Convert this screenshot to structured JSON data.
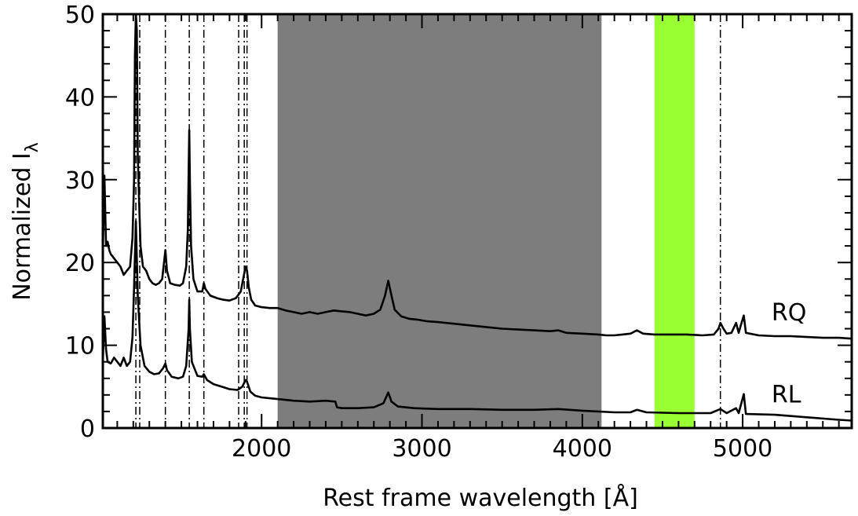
{
  "chart_data": {
    "type": "line",
    "title": "",
    "xlabel": "Rest frame wavelength [Å]",
    "ylabel": "Normalized I",
    "ylabel_subscript": "λ",
    "xlim": [
      1010,
      5680
    ],
    "ylim": [
      0,
      50
    ],
    "x_ticks": [
      {
        "value": 2000,
        "label": "2000"
      },
      {
        "value": 3000,
        "label": "3000"
      },
      {
        "value": 4000,
        "label": "4000"
      },
      {
        "value": 5000,
        "label": "5000"
      }
    ],
    "y_ticks": [
      {
        "value": 0,
        "label": "0"
      },
      {
        "value": 10,
        "label": "10"
      },
      {
        "value": 20,
        "label": "20"
      },
      {
        "value": 30,
        "label": "30"
      },
      {
        "value": 40,
        "label": "40"
      },
      {
        "value": 50,
        "label": "50"
      }
    ],
    "shaded_regions": [
      {
        "x0": 2100,
        "x1": 4120,
        "color": "#7d7d7d"
      },
      {
        "x0": 4450,
        "x1": 4700,
        "color": "#99ff33"
      }
    ],
    "line_markers": [
      1216,
      1240,
      1400,
      1549,
      1640,
      1857,
      1892,
      1909,
      4861
    ],
    "series": [
      {
        "name": "RQ",
        "color": "#000000",
        "points": [
          [
            1010,
            21
          ],
          [
            1020,
            30.5
          ],
          [
            1030,
            22
          ],
          [
            1040,
            22.5
          ],
          [
            1050,
            21.5
          ],
          [
            1060,
            21
          ],
          [
            1080,
            20.5
          ],
          [
            1100,
            20
          ],
          [
            1120,
            19.5
          ],
          [
            1140,
            18.5
          ],
          [
            1160,
            19
          ],
          [
            1180,
            19.5
          ],
          [
            1195,
            23
          ],
          [
            1205,
            30
          ],
          [
            1210,
            45
          ],
          [
            1216,
            50
          ],
          [
            1222,
            48
          ],
          [
            1228,
            33
          ],
          [
            1235,
            28
          ],
          [
            1245,
            22
          ],
          [
            1260,
            19.5
          ],
          [
            1280,
            19
          ],
          [
            1300,
            18
          ],
          [
            1320,
            17.5
          ],
          [
            1340,
            17.3
          ],
          [
            1360,
            17.5
          ],
          [
            1380,
            18
          ],
          [
            1400,
            21.5
          ],
          [
            1410,
            19
          ],
          [
            1430,
            17.5
          ],
          [
            1460,
            17.3
          ],
          [
            1490,
            17.2
          ],
          [
            1510,
            17.5
          ],
          [
            1530,
            19.5
          ],
          [
            1540,
            24
          ],
          [
            1545,
            31
          ],
          [
            1549,
            36
          ],
          [
            1553,
            30
          ],
          [
            1560,
            22
          ],
          [
            1575,
            18
          ],
          [
            1600,
            16.5
          ],
          [
            1630,
            16.5
          ],
          [
            1640,
            17.5
          ],
          [
            1650,
            16.8
          ],
          [
            1680,
            16
          ],
          [
            1720,
            15.7
          ],
          [
            1760,
            15.5
          ],
          [
            1800,
            15.4
          ],
          [
            1840,
            15.7
          ],
          [
            1870,
            16.5
          ],
          [
            1900,
            19.5
          ],
          [
            1909,
            19
          ],
          [
            1920,
            17
          ],
          [
            1935,
            15.5
          ],
          [
            1960,
            14.8
          ],
          [
            2000,
            14.6
          ],
          [
            2050,
            14.5
          ],
          [
            2100,
            14.5
          ],
          [
            2150,
            14.2
          ],
          [
            2200,
            14
          ],
          [
            2250,
            13.8
          ],
          [
            2300,
            14
          ],
          [
            2350,
            13.8
          ],
          [
            2400,
            14
          ],
          [
            2450,
            14.2
          ],
          [
            2500,
            14.1
          ],
          [
            2550,
            14
          ],
          [
            2600,
            13.8
          ],
          [
            2650,
            13.6
          ],
          [
            2700,
            13.8
          ],
          [
            2740,
            14.3
          ],
          [
            2770,
            16
          ],
          [
            2790,
            17.8
          ],
          [
            2810,
            16
          ],
          [
            2830,
            14.3
          ],
          [
            2870,
            13.5
          ],
          [
            2920,
            13.2
          ],
          [
            2970,
            13.1
          ],
          [
            3030,
            12.9
          ],
          [
            3100,
            12.8
          ],
          [
            3200,
            12.6
          ],
          [
            3300,
            12.4
          ],
          [
            3400,
            12.2
          ],
          [
            3500,
            12
          ],
          [
            3600,
            11.9
          ],
          [
            3700,
            11.8
          ],
          [
            3800,
            11.7
          ],
          [
            3850,
            11.8
          ],
          [
            3900,
            11.5
          ],
          [
            4000,
            11.4
          ],
          [
            4100,
            11.3
          ],
          [
            4150,
            11.2
          ],
          [
            4200,
            11.2
          ],
          [
            4250,
            11.3
          ],
          [
            4300,
            11.4
          ],
          [
            4340,
            11.8
          ],
          [
            4380,
            11.4
          ],
          [
            4450,
            11.3
          ],
          [
            4550,
            11.3
          ],
          [
            4650,
            11.3
          ],
          [
            4750,
            11.2
          ],
          [
            4820,
            11.3
          ],
          [
            4850,
            12
          ],
          [
            4861,
            12.7
          ],
          [
            4880,
            12
          ],
          [
            4900,
            11.4
          ],
          [
            4930,
            11.5
          ],
          [
            4959,
            12.7
          ],
          [
            4975,
            11.5
          ],
          [
            4990,
            12.5
          ],
          [
            5007,
            13.6
          ],
          [
            5020,
            11.5
          ],
          [
            5100,
            11.2
          ],
          [
            5200,
            11.1
          ],
          [
            5300,
            11.1
          ],
          [
            5400,
            11
          ],
          [
            5500,
            10.9
          ],
          [
            5600,
            10.9
          ],
          [
            5680,
            10.8
          ]
        ]
      },
      {
        "name": "RL",
        "color": "#000000",
        "points": [
          [
            1010,
            8
          ],
          [
            1020,
            13.5
          ],
          [
            1030,
            9.5
          ],
          [
            1040,
            8
          ],
          [
            1060,
            7.8
          ],
          [
            1080,
            8.5
          ],
          [
            1100,
            8
          ],
          [
            1120,
            7.5
          ],
          [
            1140,
            8.5
          ],
          [
            1160,
            7.5
          ],
          [
            1180,
            8
          ],
          [
            1195,
            11
          ],
          [
            1205,
            17
          ],
          [
            1216,
            25
          ],
          [
            1228,
            16
          ],
          [
            1245,
            10
          ],
          [
            1270,
            7.5
          ],
          [
            1300,
            6.8
          ],
          [
            1330,
            6.5
          ],
          [
            1360,
            6.6
          ],
          [
            1385,
            7.2
          ],
          [
            1400,
            7.8
          ],
          [
            1410,
            7
          ],
          [
            1440,
            6.2
          ],
          [
            1480,
            6
          ],
          [
            1510,
            6.2
          ],
          [
            1530,
            7.5
          ],
          [
            1545,
            12
          ],
          [
            1549,
            15.5
          ],
          [
            1553,
            12
          ],
          [
            1565,
            8
          ],
          [
            1600,
            6.3
          ],
          [
            1630,
            6.2
          ],
          [
            1640,
            6.5
          ],
          [
            1660,
            5.8
          ],
          [
            1700,
            5.3
          ],
          [
            1750,
            5
          ],
          [
            1800,
            4.7
          ],
          [
            1850,
            4.6
          ],
          [
            1880,
            5
          ],
          [
            1900,
            5.8
          ],
          [
            1909,
            5.6
          ],
          [
            1930,
            4.4
          ],
          [
            1960,
            3.9
          ],
          [
            2000,
            3.7
          ],
          [
            2100,
            3.5
          ],
          [
            2200,
            3.3
          ],
          [
            2300,
            3.2
          ],
          [
            2400,
            3.3
          ],
          [
            2460,
            3.2
          ],
          [
            2470,
            2.5
          ],
          [
            2500,
            2.4
          ],
          [
            2600,
            2.4
          ],
          [
            2700,
            2.5
          ],
          [
            2760,
            3
          ],
          [
            2790,
            4.3
          ],
          [
            2810,
            3.2
          ],
          [
            2850,
            2.6
          ],
          [
            2950,
            2.4
          ],
          [
            3100,
            2.3
          ],
          [
            3300,
            2.3
          ],
          [
            3500,
            2.2
          ],
          [
            3700,
            2.2
          ],
          [
            3850,
            2.3
          ],
          [
            4000,
            2.1
          ],
          [
            4100,
            2
          ],
          [
            4200,
            1.9
          ],
          [
            4300,
            1.9
          ],
          [
            4340,
            2.2
          ],
          [
            4400,
            1.9
          ],
          [
            4600,
            1.8
          ],
          [
            4800,
            1.8
          ],
          [
            4861,
            2.3
          ],
          [
            4900,
            1.8
          ],
          [
            4959,
            2.4
          ],
          [
            4975,
            1.8
          ],
          [
            5007,
            4.1
          ],
          [
            5020,
            1.7
          ],
          [
            5200,
            1.6
          ],
          [
            5400,
            1.3
          ],
          [
            5600,
            1
          ],
          [
            5680,
            0.9
          ]
        ]
      }
    ]
  }
}
